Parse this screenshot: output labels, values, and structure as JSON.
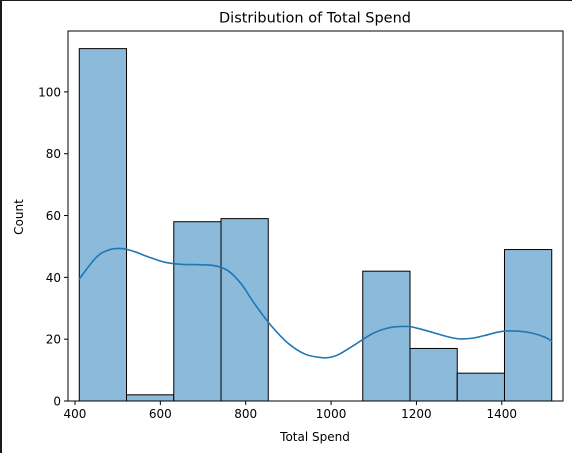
{
  "chart_data": {
    "type": "bar",
    "title": "Distribution of Total Spend",
    "xlabel": "Total Spend",
    "ylabel": "Count",
    "bins": [
      {
        "start": 410,
        "end": 520.7,
        "count": 114
      },
      {
        "start": 520.7,
        "end": 631.4,
        "count": 2
      },
      {
        "start": 631.4,
        "end": 742.1,
        "count": 58
      },
      {
        "start": 742.1,
        "end": 852.8,
        "count": 59
      },
      {
        "start": 852.8,
        "end": 963.5,
        "count": 0
      },
      {
        "start": 963.5,
        "end": 1074.2,
        "count": 0
      },
      {
        "start": 1074.2,
        "end": 1184.9,
        "count": 42
      },
      {
        "start": 1184.9,
        "end": 1295.6,
        "count": 17
      },
      {
        "start": 1295.6,
        "end": 1406.3,
        "count": 9
      },
      {
        "start": 1406.3,
        "end": 1517,
        "count": 49
      }
    ],
    "kde": {
      "x": [
        410,
        450,
        480,
        510,
        540,
        570,
        610,
        650,
        690,
        730,
        760,
        790,
        820,
        860,
        900,
        940,
        980,
        1000,
        1020,
        1060,
        1100,
        1140,
        1180,
        1200,
        1230,
        1270,
        1300,
        1330,
        1360,
        1400,
        1440,
        1470,
        1500,
        1517
      ],
      "y": [
        39.5,
        46.5,
        48.9,
        49.3,
        48.3,
        46.7,
        44.9,
        44.2,
        44.1,
        43.7,
        42,
        37.8,
        31.6,
        24.3,
        18.6,
        15.1,
        14.0,
        14.2,
        15.2,
        18.6,
        22.0,
        23.8,
        24.1,
        23.6,
        22.5,
        20.9,
        20.1,
        20.3,
        21.2,
        22.5,
        22.6,
        22.0,
        20.7,
        19.4
      ]
    },
    "xlim": [
      383.6,
      1543.4
    ],
    "ylim": [
      0,
      119.7
    ],
    "xticks": [
      400,
      600,
      800,
      1000,
      1200,
      1400
    ],
    "yticks": [
      0,
      20,
      40,
      60,
      80,
      100
    ],
    "grid": false,
    "colors": {
      "bar_fill": "#8cbadb",
      "bar_edge": "#000000",
      "kde_line": "#1f77b4",
      "axes": "#000000",
      "background": "#ffffff"
    }
  }
}
